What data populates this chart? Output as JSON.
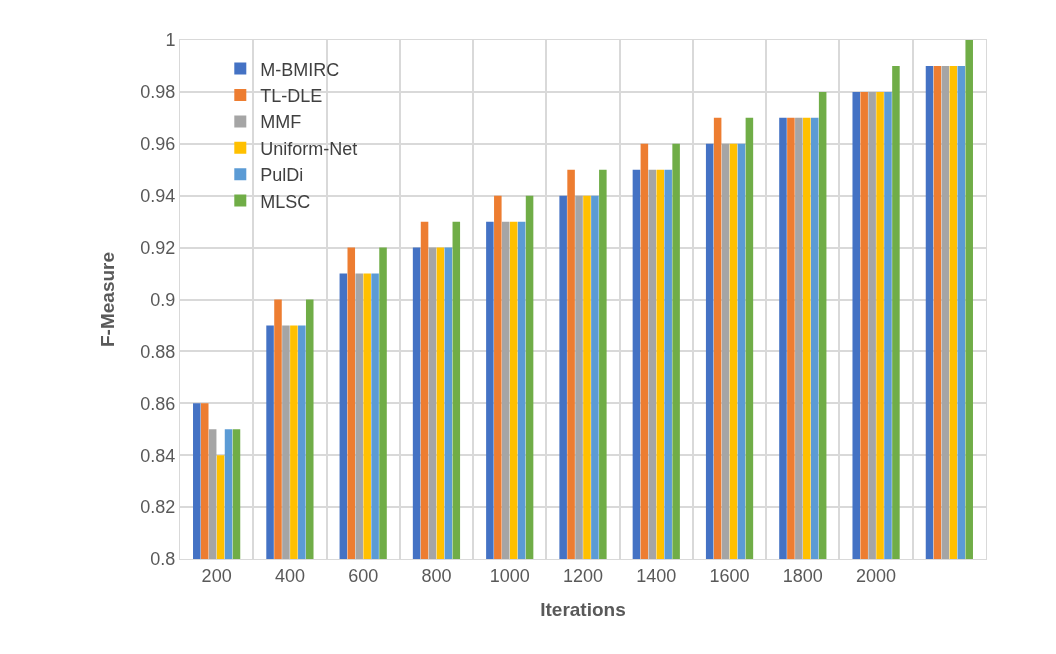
{
  "chart_data": {
    "type": "bar",
    "xlabel": "Iterations",
    "ylabel": "F-Measure",
    "categories": [
      "200",
      "400",
      "600",
      "800",
      "1000",
      "1200",
      "1400",
      "1600",
      "1800",
      "2000",
      null
    ],
    "series": [
      {
        "name": "M-BMIRC",
        "color": "#4472c4",
        "values": [
          0.86,
          0.89,
          0.91,
          0.92,
          0.93,
          0.94,
          0.95,
          0.96,
          0.97,
          0.98,
          0.99
        ]
      },
      {
        "name": "TL-DLE",
        "color": "#ed7d31",
        "values": [
          0.86,
          0.9,
          0.92,
          0.93,
          0.94,
          0.95,
          0.96,
          0.97,
          0.97,
          0.98,
          0.99
        ]
      },
      {
        "name": "MMF",
        "color": "#a5a5a5",
        "values": [
          0.85,
          0.89,
          0.91,
          0.92,
          0.93,
          0.94,
          0.95,
          0.96,
          0.97,
          0.98,
          0.99
        ]
      },
      {
        "name": "Uniform-Net",
        "color": "#ffc000",
        "values": [
          0.84,
          0.89,
          0.91,
          0.92,
          0.93,
          0.94,
          0.95,
          0.96,
          0.97,
          0.98,
          0.99
        ]
      },
      {
        "name": "PulDi",
        "color": "#5b9bd5",
        "values": [
          0.85,
          0.89,
          0.91,
          0.92,
          0.93,
          0.94,
          0.95,
          0.96,
          0.97,
          0.98,
          0.99
        ]
      },
      {
        "name": "MLSC",
        "color": "#70ad47",
        "values": [
          0.85,
          0.9,
          0.92,
          0.93,
          0.94,
          0.95,
          0.96,
          0.97,
          0.98,
          0.99,
          1.0
        ]
      }
    ],
    "ylim": [
      0.8,
      1
    ],
    "yticks": [
      0.8,
      0.82,
      0.84,
      0.86,
      0.88,
      {
        "value": 0.9,
        "label": "0.9"
      },
      0.92,
      0.94,
      0.96,
      0.98,
      1
    ],
    "grid": true,
    "legend": "top left"
  }
}
